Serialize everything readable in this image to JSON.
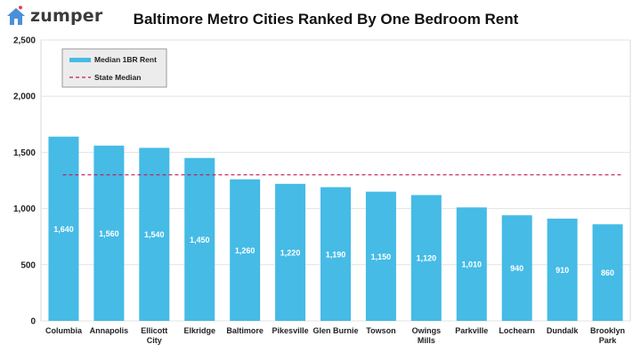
{
  "brand": {
    "name": "zumper",
    "accent": "#4a90d9",
    "dot_color": "#e8414f"
  },
  "chart_data": {
    "type": "bar",
    "title": "Baltimore Metro Cities Ranked By One Bedroom Rent",
    "categories": [
      "Columbia",
      "Annapolis",
      "Ellicott City",
      "Elkridge",
      "Baltimore",
      "Pikesville",
      "Glen Burnie",
      "Towson",
      "Owings Mills",
      "Parkville",
      "Lochearn",
      "Dundalk",
      "Brooklyn Park"
    ],
    "series": [
      {
        "name": "Median 1BR Rent",
        "values": [
          1640,
          1560,
          1540,
          1450,
          1260,
          1220,
          1190,
          1150,
          1120,
          1010,
          940,
          910,
          860
        ],
        "color": "#45bbe6"
      }
    ],
    "reference_line": {
      "name": "State Median",
      "value": 1300,
      "color": "#c2185b",
      "style": "dashed"
    },
    "ylim": [
      0,
      2500
    ],
    "yticks": [
      "0",
      "500",
      "1,000",
      "1,500",
      "2,000",
      "2,500"
    ],
    "ytick_values": [
      0,
      500,
      1000,
      1500,
      2000,
      2500
    ],
    "data_labels": [
      "1,640",
      "1,560",
      "1,540",
      "1,450",
      "1,260",
      "1,220",
      "1,190",
      "1,150",
      "1,120",
      "1,010",
      "940",
      "910",
      "860"
    ],
    "grid": true,
    "legend": "top-left",
    "xlabel": "",
    "ylabel": ""
  }
}
